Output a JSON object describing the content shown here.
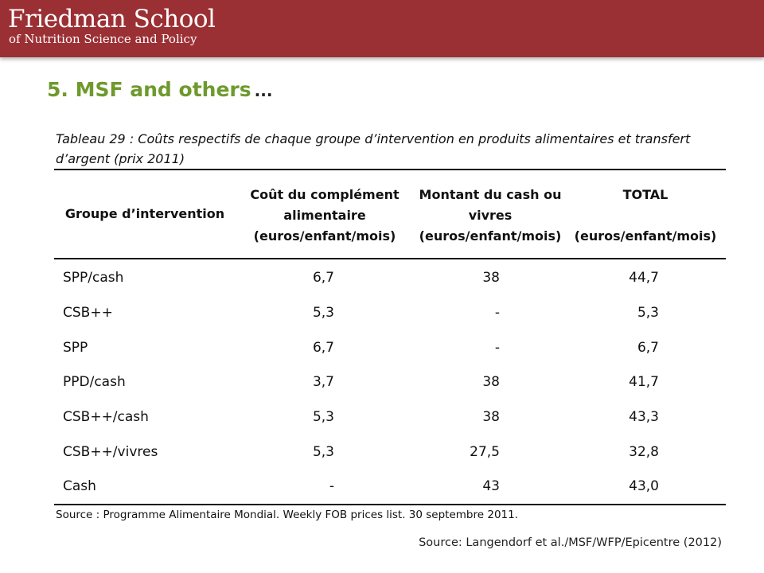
{
  "header": {
    "logo_line1": "Friedman School",
    "logo_line2": "of Nutrition Science and Policy",
    "bg_color": "#9b3034"
  },
  "slide": {
    "title": "5. MSF and others",
    "title_suffix": "...",
    "title_color": "#6e9a2c",
    "source": "Source: Langendorf et al./MSF/WFP/Epicentre (2012)"
  },
  "table": {
    "caption": "Tableau 29 : Coûts respectifs de chaque groupe d’intervention en produits alimentaires et transfert d’argent (prix 2011)",
    "headers": {
      "group": "Groupe d’intervention",
      "supplement": [
        "Coût du complément",
        "alimentaire",
        "(euros/enfant/mois)"
      ],
      "cash": [
        "Montant du cash ou",
        "vivres",
        "(euros/enfant/mois)"
      ],
      "total": [
        "TOTAL",
        "",
        "(euros/enfant/mois)"
      ]
    },
    "rows": [
      {
        "group": "SPP/cash",
        "supplement": "6,7",
        "cash": "38",
        "total": "44,7"
      },
      {
        "group": "CSB++",
        "supplement": "5,3",
        "cash": "-",
        "total": "5,3"
      },
      {
        "group": "SPP",
        "supplement": "6,7",
        "cash": "-",
        "total": "6,7"
      },
      {
        "group": "PPD/cash",
        "supplement": "3,7",
        "cash": "38",
        "total": "41,7"
      },
      {
        "group": "CSB++/cash",
        "supplement": "5,3",
        "cash": "38",
        "total": "43,3"
      },
      {
        "group": "CSB++/vivres",
        "supplement": "5,3",
        "cash": "27,5",
        "total": "32,8"
      },
      {
        "group": "Cash",
        "supplement": "-",
        "cash": "43",
        "total": "43,0"
      }
    ],
    "source": "Source : Programme Alimentaire Mondial. Weekly FOB prices list. 30 septembre 2011."
  }
}
